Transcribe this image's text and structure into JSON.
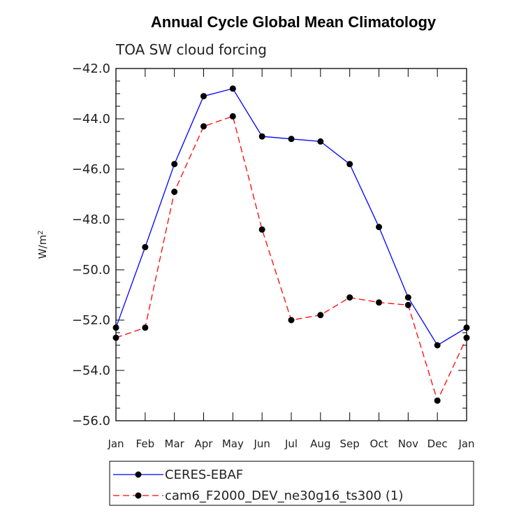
{
  "chart_data": {
    "type": "line",
    "title": "Annual Cycle Global Mean Climatology",
    "subtitle": "TOA SW cloud forcing",
    "ylabel": "W/m",
    "ylabel_sup": "2",
    "xlabel": "",
    "categories": [
      "Jan",
      "Feb",
      "Mar",
      "Apr",
      "May",
      "Jun",
      "Jul",
      "Aug",
      "Sep",
      "Oct",
      "Nov",
      "Dec",
      "Jan"
    ],
    "ylim": [
      -56.0,
      -42.0
    ],
    "yticks": [
      -42.0,
      -44.0,
      -46.0,
      -48.0,
      -50.0,
      -52.0,
      -54.0,
      -56.0
    ],
    "ytick_labels": [
      "−42.0",
      "−44.0",
      "−46.0",
      "−48.0",
      "−50.0",
      "−52.0",
      "−54.0",
      "−56.0"
    ],
    "grid": false,
    "legend_position": "bottom",
    "series": [
      {
        "name": "CERES-EBAF",
        "color": "#0000ff",
        "dash": "solid",
        "values": [
          -52.3,
          -49.1,
          -45.8,
          -43.1,
          -42.8,
          -44.7,
          -44.8,
          -44.9,
          -45.8,
          -48.3,
          -51.1,
          -53.0,
          -52.3
        ]
      },
      {
        "name": "cam6_F2000_DEV_ne30g16_ts300 (1)",
        "color": "#ff0000",
        "dash": "dashed",
        "values": [
          -52.7,
          -52.3,
          -46.9,
          -44.3,
          -43.9,
          -48.4,
          -52.0,
          -51.8,
          -51.1,
          -51.3,
          -51.4,
          -55.2,
          -52.7
        ]
      }
    ]
  }
}
